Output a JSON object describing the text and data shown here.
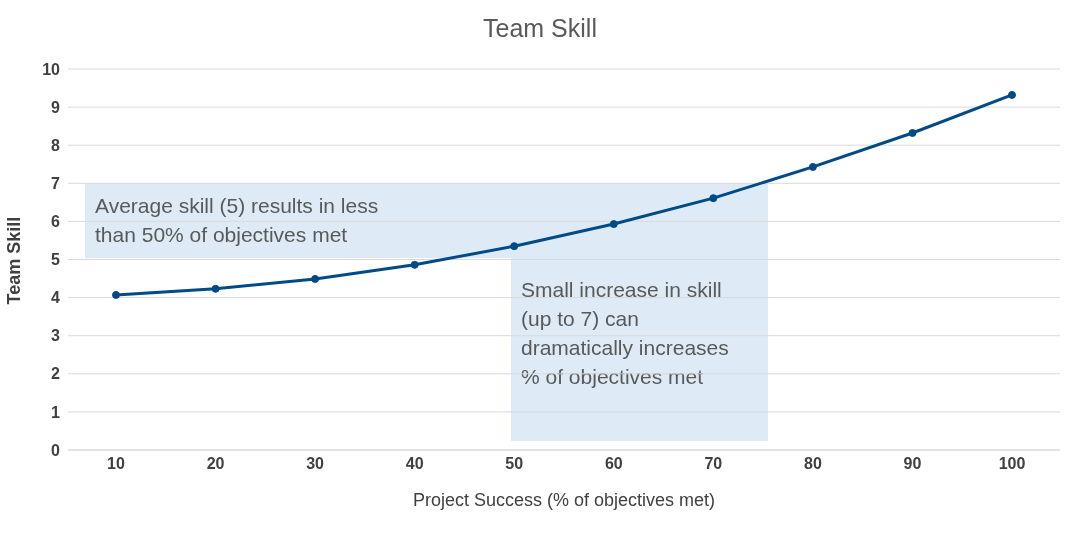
{
  "chart_data": {
    "type": "line",
    "title": "Team Skill",
    "xlabel": "Project Success (% of objectives met)",
    "ylabel": "Team Skill",
    "categories": [
      "10",
      "20",
      "30",
      "40",
      "50",
      "60",
      "70",
      "80",
      "90",
      "100"
    ],
    "series": [
      {
        "color": "#004a87",
        "values": [
          4.07,
          4.23,
          4.49,
          4.86,
          5.35,
          5.93,
          6.61,
          7.43,
          8.32,
          9.32
        ]
      }
    ],
    "ylim": [
      0,
      10
    ],
    "yticks": [
      0,
      1,
      2,
      3,
      4,
      5,
      6,
      7,
      8,
      9,
      10
    ],
    "grid": "y",
    "legend": false,
    "marker": "circle",
    "line_style": "solid",
    "annotations": [
      "Average skill (5) results in less than 50% of objectives met",
      "Small increase in skill (up to 7) can dramatically increases % of objectives met"
    ]
  }
}
